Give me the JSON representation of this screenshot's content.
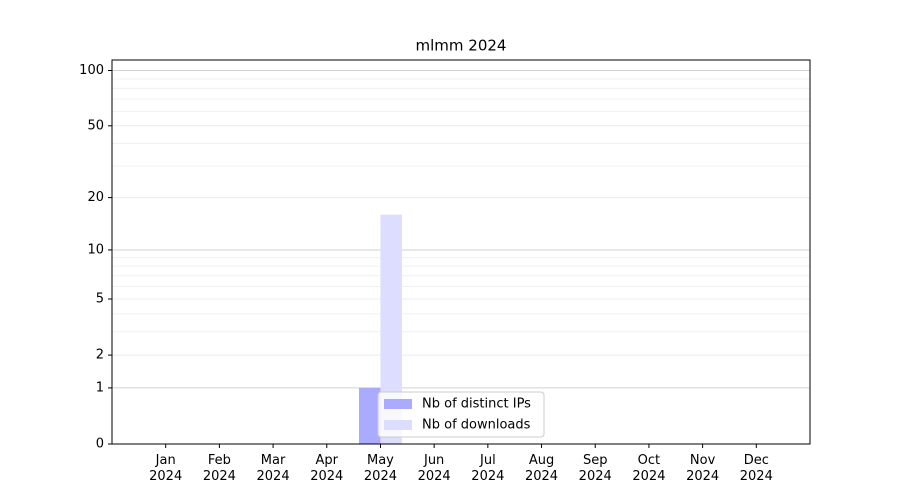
{
  "chart_data": {
    "type": "bar",
    "title": "mlmm 2024",
    "categories": [
      "Jan\n2024",
      "Feb\n2024",
      "Mar\n2024",
      "Apr\n2024",
      "May\n2024",
      "Jun\n2024",
      "Jul\n2024",
      "Aug\n2024",
      "Sep\n2024",
      "Oct\n2024",
      "Nov\n2024",
      "Dec\n2024"
    ],
    "series": [
      {
        "name": "Nb of distinct IPs",
        "color": "#aaaaff",
        "values": [
          0,
          0,
          0,
          0,
          1,
          0,
          0,
          0,
          0,
          0,
          0,
          0
        ]
      },
      {
        "name": "Nb of downloads",
        "color": "#ddddff",
        "values": [
          0,
          0,
          0,
          0,
          16,
          0,
          0,
          0,
          0,
          0,
          0,
          0
        ]
      }
    ],
    "yscale": "log1p",
    "ylim": [
      0,
      114
    ],
    "yticks": [
      0,
      1,
      2,
      5,
      10,
      20,
      50,
      100
    ],
    "yminorticks": [
      3,
      4,
      6,
      7,
      8,
      9,
      30,
      40,
      60,
      70,
      80,
      90
    ],
    "grid": true,
    "legend": "lower center"
  }
}
